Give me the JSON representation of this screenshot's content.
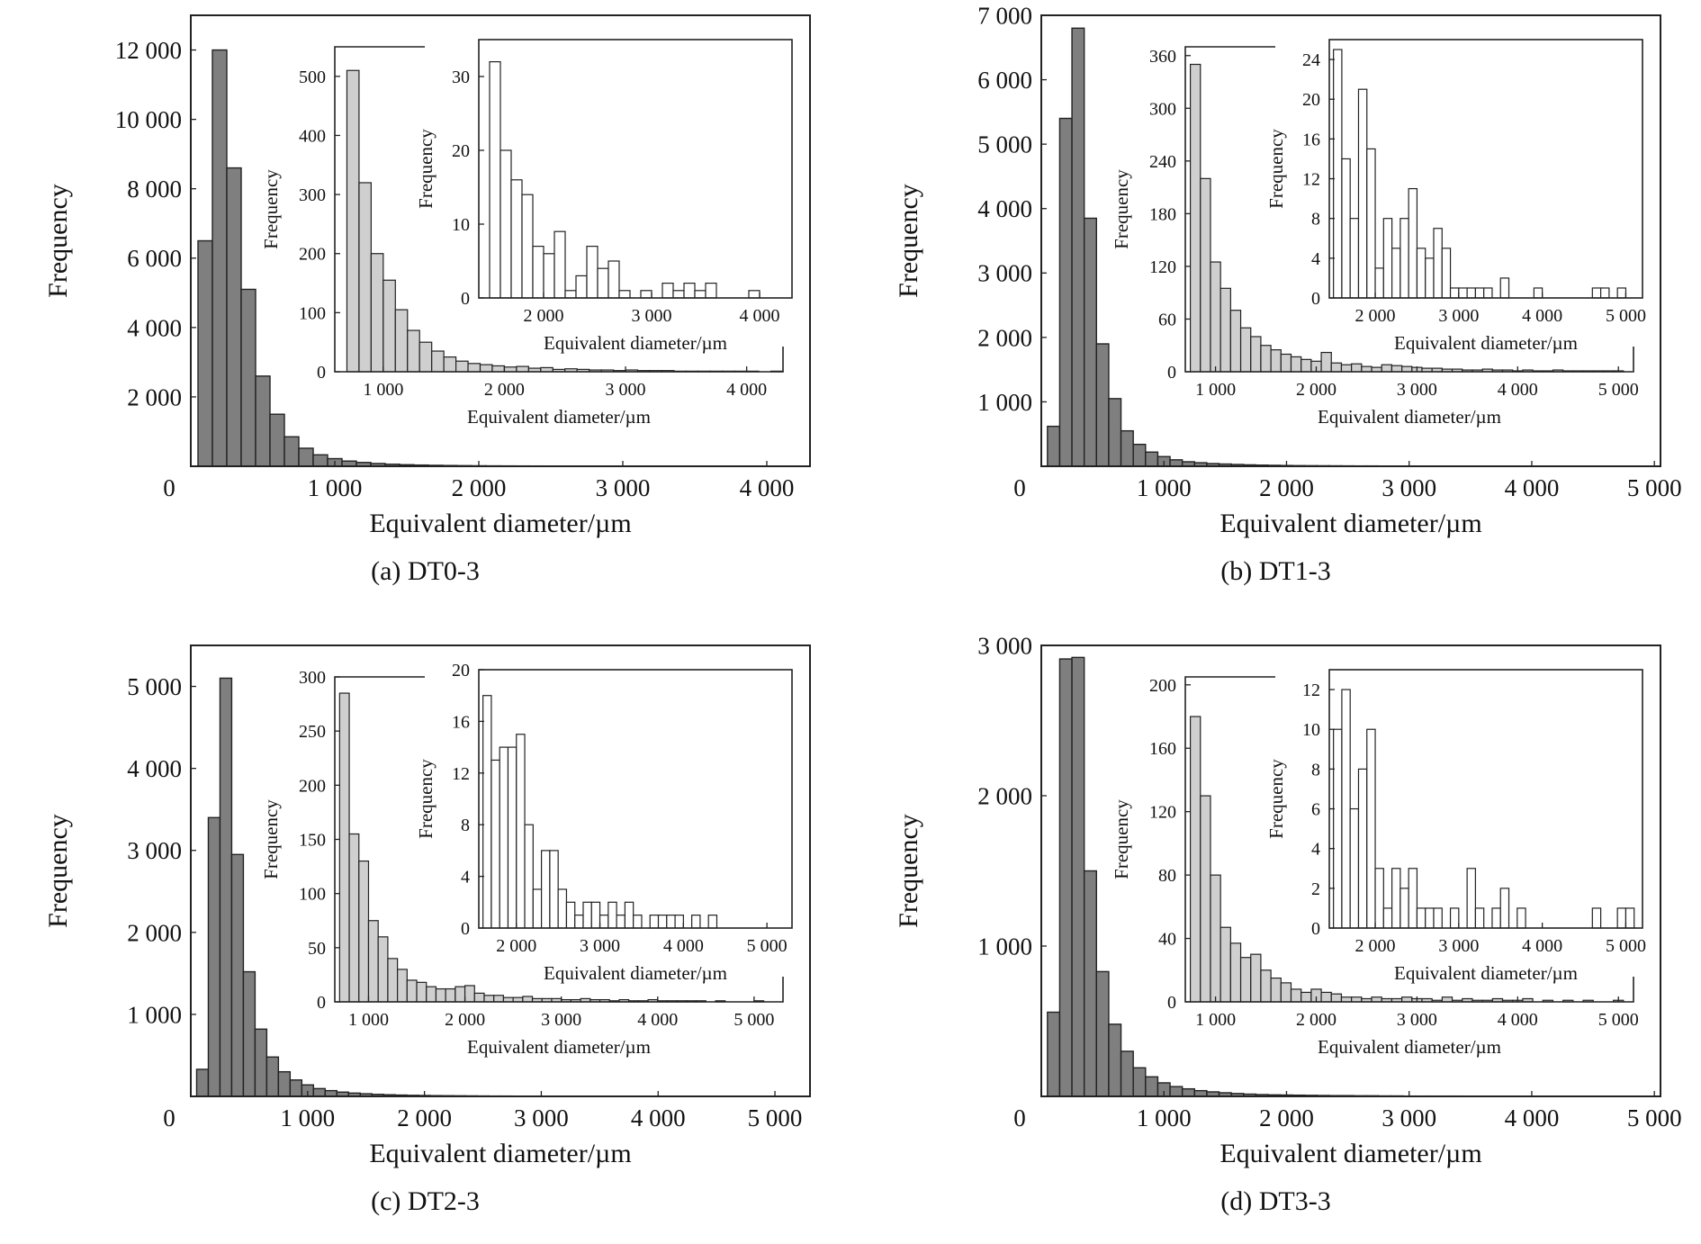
{
  "chart_data": [
    {
      "type": "bar",
      "caption": "(a) DT0-3",
      "main": {
        "xlabel": "Equivalent diameter/µm",
        "ylabel": "Frequency",
        "xlim": [
          0,
          4300
        ],
        "ylim": [
          0,
          13000
        ],
        "xticks": [
          1000,
          2000,
          3000,
          4000
        ],
        "xtick_labels": [
          "1 000",
          "2 000",
          "3 000",
          "4 000"
        ],
        "yticks": [
          2000,
          4000,
          6000,
          8000,
          10000,
          12000
        ],
        "ytick_labels": [
          "2 000",
          "4 000",
          "6 000",
          "8 000",
          "10 000",
          "12 000"
        ],
        "origin_label": "0",
        "bin_start": 50,
        "bin_width": 100,
        "values": [
          6500,
          12000,
          8600,
          5100,
          2600,
          1500,
          850,
          520,
          330,
          220,
          150,
          110,
          80,
          60,
          45,
          35,
          28,
          22,
          18,
          14,
          12,
          10,
          9,
          8,
          7,
          6,
          5,
          4,
          4,
          3,
          3,
          2,
          2,
          2,
          2,
          1,
          1,
          1,
          1,
          1
        ]
      },
      "inset1": {
        "ylabel": "Frequency",
        "xlabel": "Equivalent diameter/µm",
        "xlim": [
          600,
          4300
        ],
        "ylim": [
          0,
          550
        ],
        "xticks": [
          1000,
          2000,
          3000,
          4000
        ],
        "xtick_labels": [
          "1 000",
          "2 000",
          "3 000",
          "4 000"
        ],
        "yticks": [
          0,
          100,
          200,
          300,
          400,
          500
        ],
        "ytick_labels": [
          "0",
          "100",
          "200",
          "300",
          "400",
          "500"
        ],
        "bin_start": 700,
        "bin_width": 100,
        "values": [
          510,
          320,
          200,
          155,
          105,
          70,
          50,
          35,
          25,
          18,
          14,
          12,
          10,
          8,
          9,
          6,
          7,
          4,
          5,
          4,
          3,
          3,
          2,
          3,
          2,
          2,
          2,
          1,
          1,
          1,
          1,
          1,
          1,
          1,
          0,
          1
        ]
      },
      "inset2": {
        "ylabel": "Frequency",
        "xlabel": "Equivalent diameter/µm",
        "xlim": [
          1400,
          4300
        ],
        "ylim": [
          0,
          35
        ],
        "xticks": [
          2000,
          3000,
          4000
        ],
        "xtick_labels": [
          "2 000",
          "3 000",
          "4 000"
        ],
        "yticks": [
          0,
          10,
          20,
          30
        ],
        "ytick_labels": [
          "0",
          "10",
          "20",
          "30"
        ],
        "bin_start": 1500,
        "bin_width": 100,
        "values": [
          32,
          20,
          16,
          14,
          7,
          6,
          9,
          1,
          3,
          7,
          4,
          5,
          1,
          0,
          1,
          0,
          2,
          1,
          2,
          1,
          2,
          0,
          0,
          0,
          1,
          0,
          0,
          0
        ]
      }
    },
    {
      "type": "bar",
      "caption": "(b) DT1-3",
      "main": {
        "xlabel": "Equivalent diameter/µm",
        "ylabel": "Frequency",
        "xlim": [
          0,
          5050
        ],
        "ylim": [
          0,
          7000
        ],
        "xticks": [
          1000,
          2000,
          3000,
          4000,
          5000
        ],
        "xtick_labels": [
          "1 000",
          "2 000",
          "3 000",
          "4 000",
          "5 000"
        ],
        "yticks": [
          1000,
          2000,
          3000,
          4000,
          5000,
          6000,
          7000
        ],
        "ytick_labels": [
          "1 000",
          "2 000",
          "3 000",
          "4 000",
          "5 000",
          "6 000",
          "7 000"
        ],
        "origin_label": "0",
        "bin_start": 50,
        "bin_width": 100,
        "values": [
          620,
          5400,
          6800,
          3850,
          1900,
          1050,
          550,
          340,
          220,
          150,
          100,
          70,
          55,
          42,
          35,
          28,
          22,
          18,
          15,
          12,
          10,
          9,
          8,
          7,
          6,
          5,
          5,
          4,
          3,
          3,
          3,
          2,
          2,
          2,
          2,
          2,
          1,
          1,
          1,
          1
        ]
      },
      "inset1": {
        "ylabel": "Frequency",
        "xlabel": "Equivalent diameter/µm",
        "xlim": [
          700,
          5150
        ],
        "ylim": [
          0,
          370
        ],
        "xticks": [
          1000,
          2000,
          3000,
          4000,
          5000
        ],
        "xtick_labels": [
          "1 000",
          "2 000",
          "3 000",
          "4 000",
          "5 000"
        ],
        "yticks": [
          0,
          60,
          120,
          180,
          240,
          300,
          360
        ],
        "ytick_labels": [
          "0",
          "60",
          "120",
          "180",
          "240",
          "300",
          "360"
        ],
        "bin_start": 750,
        "bin_width": 100,
        "values": [
          350,
          220,
          125,
          95,
          70,
          50,
          40,
          30,
          25,
          20,
          17,
          14,
          12,
          22,
          10,
          8,
          9,
          6,
          5,
          8,
          7,
          6,
          5,
          4,
          4,
          3,
          3,
          2,
          2,
          3,
          2,
          2,
          1,
          2,
          1,
          1,
          2,
          1,
          1,
          1,
          1,
          1,
          1,
          0,
          1
        ]
      },
      "inset2": {
        "ylabel": "Frequency",
        "xlabel": "Equivalent diameter/µm",
        "xlim": [
          1450,
          5200
        ],
        "ylim": [
          0,
          26
        ],
        "xticks": [
          2000,
          3000,
          4000,
          5000
        ],
        "xtick_labels": [
          "2 000",
          "3 000",
          "4 000",
          "5 000"
        ],
        "yticks": [
          0,
          4,
          8,
          12,
          16,
          20,
          24
        ],
        "ytick_labels": [
          "0",
          "4",
          "8",
          "12",
          "16",
          "20",
          "24"
        ],
        "bin_start": 1500,
        "bin_width": 100,
        "values": [
          25,
          14,
          8,
          21,
          15,
          3,
          8,
          5,
          8,
          11,
          5,
          4,
          7,
          5,
          1,
          1,
          1,
          1,
          1,
          0,
          2,
          0,
          0,
          0,
          1,
          0,
          0,
          0,
          0,
          0,
          0,
          1,
          1,
          0,
          1,
          0,
          0
        ]
      }
    },
    {
      "type": "bar",
      "caption": "(c) DT2-3",
      "main": {
        "xlabel": "Equivalent diameter/µm",
        "ylabel": "Frequency",
        "xlim": [
          0,
          5300
        ],
        "ylim": [
          0,
          5500
        ],
        "xticks": [
          1000,
          2000,
          3000,
          4000,
          5000
        ],
        "xtick_labels": [
          "1 000",
          "2 000",
          "3 000",
          "4 000",
          "5 000"
        ],
        "yticks": [
          1000,
          2000,
          3000,
          4000,
          5000
        ],
        "ytick_labels": [
          "1 000",
          "2 000",
          "3 000",
          "4 000",
          "5 000"
        ],
        "origin_label": "0",
        "bin_start": 50,
        "bin_width": 100,
        "values": [
          330,
          3400,
          5100,
          2950,
          1520,
          820,
          480,
          300,
          200,
          140,
          95,
          70,
          52,
          40,
          32,
          25,
          20,
          16,
          13,
          11,
          9,
          8,
          7,
          6,
          5,
          4,
          4,
          3,
          3,
          3,
          2,
          2,
          2,
          2,
          1,
          1,
          1,
          1,
          1,
          1,
          1
        ]
      },
      "inset1": {
        "ylabel": "Frequency",
        "xlabel": "Equivalent diameter/µm",
        "xlim": [
          650,
          5300
        ],
        "ylim": [
          0,
          300
        ],
        "xticks": [
          1000,
          2000,
          3000,
          4000,
          5000
        ],
        "xtick_labels": [
          "1 000",
          "2 000",
          "3 000",
          "4 000",
          "5 000"
        ],
        "yticks": [
          0,
          50,
          100,
          150,
          200,
          250,
          300
        ],
        "ytick_labels": [
          "0",
          "50",
          "100",
          "150",
          "200",
          "250",
          "300"
        ],
        "bin_start": 700,
        "bin_width": 100,
        "values": [
          285,
          155,
          130,
          75,
          60,
          40,
          30,
          20,
          18,
          14,
          12,
          12,
          14,
          15,
          8,
          6,
          6,
          4,
          4,
          5,
          3,
          3,
          3,
          2,
          2,
          3,
          2,
          2,
          1,
          2,
          1,
          1,
          2,
          1,
          1,
          1,
          1,
          1,
          0,
          1,
          0,
          0,
          0,
          1,
          0,
          0
        ]
      },
      "inset2": {
        "ylabel": "Frequency",
        "xlabel": "Equivalent diameter/µm",
        "xlim": [
          1550,
          5300
        ],
        "ylim": [
          0,
          20
        ],
        "xticks": [
          2000,
          3000,
          4000,
          5000
        ],
        "xtick_labels": [
          "2 000",
          "3 000",
          "4 000",
          "5 000"
        ],
        "yticks": [
          0,
          4,
          8,
          12,
          16,
          20
        ],
        "ytick_labels": [
          "0",
          "4",
          "8",
          "12",
          "16",
          "20"
        ],
        "bin_start": 1600,
        "bin_width": 100,
        "values": [
          18,
          13,
          14,
          14,
          15,
          8,
          3,
          6,
          6,
          3,
          2,
          1,
          2,
          2,
          1,
          2,
          1,
          2,
          1,
          0,
          1,
          1,
          1,
          1,
          0,
          1,
          0,
          1,
          0,
          0,
          0,
          0
        ]
      }
    },
    {
      "type": "bar",
      "caption": "(d) DT3-3",
      "main": {
        "xlabel": "Equivalent diameter/µm",
        "ylabel": "Frequency",
        "xlim": [
          0,
          5050
        ],
        "ylim": [
          0,
          3000
        ],
        "xticks": [
          1000,
          2000,
          3000,
          4000,
          5000
        ],
        "xtick_labels": [
          "1 000",
          "2 000",
          "3 000",
          "4 000",
          "5 000"
        ],
        "yticks": [
          1000,
          2000,
          3000
        ],
        "ytick_labels": [
          "1 000",
          "2 000",
          "3 000"
        ],
        "origin_label": "0",
        "bin_start": 50,
        "bin_width": 100,
        "values": [
          560,
          2910,
          2920,
          1500,
          830,
          480,
          300,
          190,
          130,
          90,
          65,
          50,
          38,
          30,
          24,
          19,
          15,
          12,
          10,
          9,
          8,
          7,
          6,
          5,
          5,
          4,
          4,
          3,
          3,
          2,
          2,
          2,
          2,
          2,
          1,
          1,
          1,
          1,
          1,
          1
        ]
      },
      "inset1": {
        "ylabel": "Frequency",
        "xlabel": "Equivalent diameter/µm",
        "xlim": [
          700,
          5150
        ],
        "ylim": [
          0,
          205
        ],
        "xticks": [
          1000,
          2000,
          3000,
          4000,
          5000
        ],
        "xtick_labels": [
          "1 000",
          "2 000",
          "3 000",
          "4 000",
          "5 000"
        ],
        "yticks": [
          0,
          40,
          80,
          120,
          160,
          200
        ],
        "ytick_labels": [
          "0",
          "40",
          "80",
          "120",
          "160",
          "200"
        ],
        "bin_start": 750,
        "bin_width": 100,
        "values": [
          180,
          130,
          80,
          47,
          37,
          28,
          30,
          20,
          15,
          12,
          8,
          6,
          8,
          6,
          5,
          3,
          3,
          2,
          3,
          2,
          2,
          3,
          2,
          2,
          1,
          3,
          1,
          2,
          1,
          1,
          2,
          1,
          1,
          2,
          0,
          1,
          0,
          1,
          0,
          1,
          0,
          0,
          1,
          0,
          1
        ]
      },
      "inset2": {
        "ylabel": "Frequency",
        "xlabel": "Equivalent diameter/µm",
        "xlim": [
          1450,
          5200
        ],
        "ylim": [
          0,
          13
        ],
        "xticks": [
          2000,
          3000,
          4000,
          5000
        ],
        "xtick_labels": [
          "2 000",
          "3 000",
          "4 000",
          "5 000"
        ],
        "yticks": [
          0,
          2,
          4,
          6,
          8,
          10,
          12
        ],
        "ytick_labels": [
          "0",
          "2",
          "4",
          "6",
          "8",
          "10",
          "12"
        ],
        "bin_start": 1500,
        "bin_width": 100,
        "values": [
          10,
          12,
          6,
          8,
          10,
          3,
          1,
          3,
          2,
          3,
          1,
          1,
          1,
          0,
          1,
          0,
          3,
          1,
          0,
          1,
          2,
          0,
          1,
          0,
          0,
          0,
          0,
          0,
          0,
          0,
          0,
          1,
          0,
          0,
          1,
          1,
          0
        ]
      }
    }
  ]
}
